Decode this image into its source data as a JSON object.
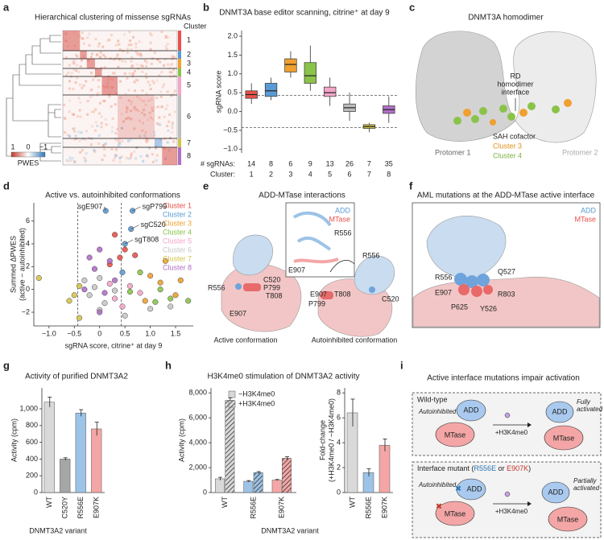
{
  "figure": {
    "panel_labels": [
      "a",
      "b",
      "c",
      "d",
      "e",
      "f",
      "g",
      "h",
      "i"
    ]
  },
  "panel_a": {
    "title": "Hierarchical clustering of missense sgRNAs",
    "legend_title": "Cluster",
    "clusters": [
      "1",
      "2",
      "3",
      "4",
      "5",
      "6",
      "7",
      "8"
    ],
    "colorbar_ticks": [
      "1",
      "0",
      "−1"
    ],
    "colorbar_label": "PWES"
  },
  "panel_c": {
    "title": "DNMT3A homodimer",
    "interface_label": [
      "RD",
      "homodimer",
      "interface"
    ],
    "cofactor_label": "SAH cofactor",
    "cluster_labels": [
      "Cluster 3",
      "Cluster 4"
    ],
    "protomers": [
      "Protomer 1",
      "Protomer 2"
    ]
  },
  "panel_e": {
    "title": "ADD-MTase interactions",
    "inset_legend": [
      "ADD",
      "MTase"
    ],
    "inset_labels": [
      "R556",
      "E907"
    ],
    "active_labels": [
      "R556",
      "C520",
      "P799",
      "T808",
      "E907"
    ],
    "active_caption": "Active conformation",
    "autoinhibited_labels": [
      "R556",
      "E907",
      "T808",
      "P799",
      "C520"
    ],
    "autoinhibited_caption": "Autoinhibited conformation"
  },
  "panel_f": {
    "title": "AML mutations at the ADD-MTase active interface",
    "legend": [
      "ADD",
      "MTase"
    ],
    "labels": [
      "R556",
      "Q527",
      "E907",
      "R803",
      "P625",
      "Y526"
    ]
  },
  "panel_i": {
    "title": "Active interface mutations impair activation",
    "wild_type": {
      "title": "Wild-type",
      "state_before": "Autoinhibited",
      "domains": [
        "ADD",
        "MTase",
        "ADD",
        "MTase"
      ],
      "stimulus": "+H3K4me0",
      "state_after": [
        "Fully",
        "activated"
      ]
    },
    "mutant": {
      "title_parts": [
        "Interface mutant (",
        "R556E",
        " or ",
        "E907K",
        ")"
      ],
      "state_before": "Autoinhibited",
      "domains": [
        "ADD",
        "MTase",
        "ADD",
        "MTase"
      ],
      "stimulus": "+H3K4me0",
      "state_after": [
        "Partially",
        "activated"
      ]
    }
  },
  "chart_data": [
    {
      "type": "box",
      "title": "DNMT3A base editor scanning, citrine⁺ at day 9",
      "ylabel": "sgRNA score",
      "categories": [
        "1",
        "2",
        "3",
        "4",
        "5",
        "6",
        "7",
        "8"
      ],
      "category_label": "Cluster:",
      "counts_label": "# sgRNAs:",
      "counts": [
        14,
        8,
        6,
        9,
        13,
        26,
        7,
        35
      ],
      "colors": [
        "#e8524a",
        "#5b9bd5",
        "#f0a030",
        "#8bc34a",
        "#f4a6c8",
        "#bdbdbd",
        "#d4c44a",
        "#b16fc7"
      ],
      "low": [
        0.2,
        0.3,
        0.9,
        0.55,
        0.15,
        -0.25,
        -0.55,
        -0.3
      ],
      "q1": [
        0.35,
        0.4,
        1.05,
        0.75,
        0.4,
        0.0,
        -0.45,
        -0.05
      ],
      "median": [
        0.45,
        0.55,
        1.25,
        0.95,
        0.5,
        0.1,
        -0.4,
        0.05
      ],
      "q3": [
        0.55,
        0.75,
        1.4,
        1.3,
        0.65,
        0.2,
        -0.35,
        0.15
      ],
      "high": [
        0.75,
        0.9,
        1.6,
        1.75,
        0.9,
        0.5,
        -0.3,
        0.4
      ],
      "thresholds": [
        0.43,
        -0.43
      ],
      "ylim": [
        -1.1,
        2.15
      ],
      "yticks": [
        {
          "value": -1,
          "label": "−1.0"
        },
        {
          "value": -0.5,
          "label": "−0.5"
        },
        {
          "value": 0,
          "label": "0.0"
        },
        0.5,
        {
          "value": 1,
          "label": "1.0"
        },
        1.5,
        {
          "value": 2,
          "label": "2.0"
        }
      ]
    },
    {
      "type": "scatter",
      "title": "Active vs. autoinhibited conformations",
      "xlabel": "sgRNA score, citrine⁺ at day 9",
      "ylabel": [
        "Summed ΔPWES",
        "(active − autoinhibited)"
      ],
      "legend": "upper right",
      "xlim": [
        -1.3,
        1.85
      ],
      "ylim": [
        -3.2,
        7.6
      ],
      "xticks": [
        {
          "value": -1,
          "label": "−1.0"
        },
        {
          "value": -0.5,
          "label": "−0.5"
        },
        0,
        0.5,
        {
          "value": 1,
          "label": "1.0"
        },
        1.5
      ],
      "yticks": [
        {
          "value": -2,
          "label": "−2"
        },
        0,
        2,
        4,
        6
      ],
      "thresholds": [
        -0.43,
        0.43
      ],
      "series": [
        {
          "name": "Cluster 1",
          "color": "#e8524a",
          "x": [
            0.3,
            0.5,
            0.4,
            0.7,
            0.2
          ],
          "y": [
            4.8,
            3.5,
            2.8,
            3.0,
            2.2
          ]
        },
        {
          "name": "Cluster 2",
          "color": "#5b9bd5",
          "x": [
            0.12,
            0.65,
            0.62,
            0.5,
            0.45
          ],
          "y": [
            6.9,
            6.9,
            5.3,
            4.0,
            1.5
          ]
        },
        {
          "name": "Cluster 3",
          "color": "#f0a030",
          "x": [
            1.3,
            1.0,
            1.5,
            1.2,
            0.9,
            1.6
          ],
          "y": [
            2.5,
            1.2,
            -0.5,
            0.6,
            -1.0,
            0.8
          ]
        },
        {
          "name": "Cluster 4",
          "color": "#8bc34a",
          "x": [
            0.8,
            1.2,
            1.4,
            0.6,
            1.1,
            1.75
          ],
          "y": [
            1.5,
            0.0,
            -0.8,
            -0.2,
            -1.1,
            -1.0
          ]
        },
        {
          "name": "Cluster 5",
          "color": "#f4a6c8",
          "x": [
            0.3,
            0.6,
            0.45,
            0.2,
            0.8
          ],
          "y": [
            -0.8,
            0.3,
            -1.5,
            0.5,
            -0.3
          ]
        },
        {
          "name": "Cluster 6",
          "color": "#c8c8c8",
          "x": [
            0.0,
            -0.2,
            0.1,
            -0.1,
            0.3,
            0.0,
            -0.3,
            0.5,
            1.0,
            1.4
          ],
          "y": [
            1.0,
            -0.5,
            -1.2,
            0.2,
            -0.1,
            -1.8,
            0.8,
            -2.3,
            -1.7,
            -1.5
          ]
        },
        {
          "name": "Cluster 7",
          "color": "#d4c44a",
          "x": [
            -1.2,
            -0.5,
            -0.4,
            -0.6,
            -0.4
          ],
          "y": [
            1.0,
            -0.5,
            0.3,
            -1.0,
            -2.5
          ]
        },
        {
          "name": "Cluster 8",
          "color": "#b16fc7",
          "x": [
            -0.2,
            0.0,
            -0.1,
            0.1,
            -0.3,
            0.2,
            0.3,
            0.0
          ],
          "y": [
            2.8,
            3.5,
            1.8,
            -0.3,
            0.0,
            2.5,
            0.8,
            -2.0
          ]
        }
      ],
      "annotations": [
        {
          "text": "sgE907",
          "x": 0.12,
          "y": 6.9
        },
        {
          "text": "sgP799",
          "x": 0.65,
          "y": 6.9
        },
        {
          "text": "sgC520",
          "x": 0.62,
          "y": 5.3
        },
        {
          "text": "sgT808",
          "x": 0.5,
          "y": 4.0
        }
      ]
    },
    {
      "type": "bar",
      "title": "Activity of purified DNMT3A2",
      "ylabel": "Activity (cpm)",
      "xlabel": "DNMT3A2 variant",
      "categories": [
        "WT",
        "C520Y",
        "R556E",
        "E907K"
      ],
      "values": [
        1080,
        400,
        950,
        760
      ],
      "errors": [
        60,
        15,
        40,
        80
      ],
      "colors": [
        "#d9d9d9",
        "#a6a6a6",
        "#9dc3e6",
        "#f4a6a6"
      ],
      "ylim": [
        0,
        1250
      ],
      "yticks": [
        0,
        200,
        400,
        600,
        800,
        {
          "value": 1000,
          "label": "1,000"
        }
      ]
    },
    {
      "type": "bar",
      "title": "H3K4me0 stimulation of DNMT3A2 activity",
      "ylabel": "Activity (cpm)",
      "xlabel": "DNMT3A2 variant",
      "categories": [
        "WT",
        "R556E",
        "E907K"
      ],
      "colors": [
        "#d9d9d9",
        "#9dc3e6",
        "#f4a6a6"
      ],
      "series": [
        {
          "name": "−H3K4me0",
          "pattern": "solid",
          "values": [
            1100,
            900,
            1000
          ],
          "errors": [
            120,
            60,
            50
          ]
        },
        {
          "name": "+H3K4me0",
          "pattern": "hatched",
          "values": [
            7400,
            1600,
            2750
          ],
          "errors": [
            200,
            80,
            120
          ]
        }
      ],
      "ylim": [
        0,
        8400
      ],
      "yticks": [
        0,
        {
          "value": 2000,
          "label": "2,000"
        },
        {
          "value": 4000,
          "label": "4,000"
        },
        {
          "value": 6000,
          "label": "6,000"
        },
        {
          "value": 8000,
          "label": "8,000"
        }
      ]
    },
    {
      "type": "bar",
      "ylabel": [
        "Fold-change",
        "(+H3K4me0 / −H3K4me0)"
      ],
      "categories": [
        "WT",
        "R556E",
        "E907K"
      ],
      "values": [
        6.4,
        1.6,
        3.8
      ],
      "errors": [
        1.1,
        0.3,
        0.5
      ],
      "colors": [
        "#d9d9d9",
        "#9dc3e6",
        "#f4a6a6"
      ],
      "ylim": [
        0,
        8.4
      ],
      "yticks": [
        0,
        2,
        4,
        6,
        8
      ]
    }
  ]
}
